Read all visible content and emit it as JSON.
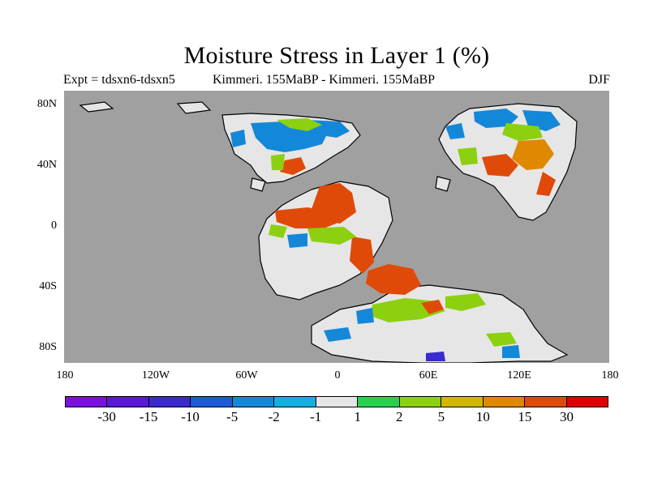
{
  "title": "Moisture Stress in Layer 1 (%)",
  "subtitle_left": "Expt = tdsxn6-tdsxn5",
  "subtitle_center": "Kimmeri. 155MaBP - Kimmeri. 155MaBP",
  "subtitle_right": "DJF",
  "y_ticks": [
    "80N",
    "40N",
    "0",
    "40S",
    "80S"
  ],
  "x_ticks": [
    "180",
    "120W",
    "60W",
    "0",
    "60E",
    "120E",
    "180"
  ],
  "colors": {
    "ocean": "#a0a0a0",
    "no_change": "#e6e6e6",
    "coast": "#000000"
  },
  "colorbar": {
    "colors": [
      "#7a10e0",
      "#5a18d8",
      "#3a2ad0",
      "#1e5ad8",
      "#1488d8",
      "#10b0e0",
      "#e6e6e6",
      "#28d050",
      "#8cd010",
      "#d0b800",
      "#e08800",
      "#e04a08",
      "#e00000"
    ],
    "labels": [
      "-30",
      "-15",
      "-10",
      "-5",
      "-2",
      "-1",
      "1",
      "2",
      "5",
      "10",
      "15",
      "30"
    ]
  }
}
